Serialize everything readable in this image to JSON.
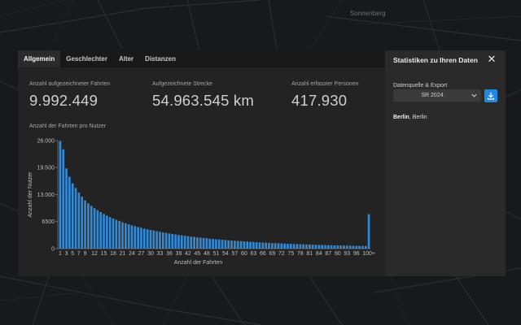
{
  "map": {
    "place_label": "Sonnenberg"
  },
  "tabs": [
    {
      "label": "Allgemein",
      "active": true
    },
    {
      "label": "Geschlechter",
      "active": false
    },
    {
      "label": "Alter",
      "active": false
    },
    {
      "label": "Distanzen",
      "active": false
    }
  ],
  "stats": [
    {
      "label": "Anzahl aufgezeichneter Fahrten",
      "value": "9.992.449"
    },
    {
      "label": "Aufgezeichnete Strecke",
      "value": "54.963.545 km"
    },
    {
      "label": "Anzahl erfasster Personen",
      "value": "417.930"
    }
  ],
  "chart_section_title": "Anzahl der Fahrten pro Nutzer",
  "panel": {
    "title": "Statistiken zu Ihren Daten",
    "section_label": "Datenquelle & Export",
    "select_value": "SR 2024",
    "location_bold": "Berlin",
    "location_rest": ", Berlin"
  },
  "colors": {
    "bar": "#2f8ad8",
    "download_button": "#1e88e5"
  },
  "icons": [
    "close-icon",
    "chevron-down-icon",
    "download-icon"
  ],
  "chart_data": {
    "type": "bar",
    "title": "Anzahl der Fahrten pro Nutzer",
    "xlabel": "Anzahl der Fahrten",
    "ylabel": "Anzahl der Nutzer",
    "ylim": [
      0,
      26000
    ],
    "yticks": [
      {
        "value": 0,
        "label": "0"
      },
      {
        "value": 6500,
        "label": "6500"
      },
      {
        "value": 13000,
        "label": "13.000"
      },
      {
        "value": 19500,
        "label": "19.500"
      },
      {
        "value": 26000,
        "label": "26.000"
      }
    ],
    "x_tick_labels": [
      "1",
      "3",
      "5",
      "7",
      "9",
      "12",
      "15",
      "18",
      "21",
      "24",
      "27",
      "30",
      "33",
      "36",
      "39",
      "42",
      "45",
      "48",
      "51",
      "54",
      "57",
      "60",
      "63",
      "66",
      "69",
      "72",
      "75",
      "78",
      "81",
      "84",
      "87",
      "90",
      "93",
      "96",
      "100+"
    ],
    "categories": [
      "1",
      "2",
      "3",
      "4",
      "5",
      "6",
      "7",
      "8",
      "9",
      "10",
      "11",
      "12",
      "13",
      "14",
      "15",
      "16",
      "17",
      "18",
      "19",
      "20",
      "21",
      "22",
      "23",
      "24",
      "25",
      "26",
      "27",
      "28",
      "29",
      "30",
      "31",
      "32",
      "33",
      "34",
      "35",
      "36",
      "37",
      "38",
      "39",
      "40",
      "41",
      "42",
      "43",
      "44",
      "45",
      "46",
      "47",
      "48",
      "49",
      "50",
      "51",
      "52",
      "53",
      "54",
      "55",
      "56",
      "57",
      "58",
      "59",
      "60",
      "61",
      "62",
      "63",
      "64",
      "65",
      "66",
      "67",
      "68",
      "69",
      "70",
      "71",
      "72",
      "73",
      "74",
      "75",
      "76",
      "77",
      "78",
      "79",
      "80",
      "81",
      "82",
      "83",
      "84",
      "85",
      "86",
      "87",
      "88",
      "89",
      "90",
      "91",
      "92",
      "93",
      "94",
      "95",
      "96",
      "97",
      "98",
      "99",
      "100+"
    ],
    "values": [
      25900,
      23900,
      19300,
      17300,
      15700,
      14600,
      13500,
      12500,
      11600,
      10900,
      10300,
      9750,
      9250,
      8800,
      8350,
      7950,
      7600,
      7250,
      6950,
      6650,
      6350,
      6100,
      5850,
      5600,
      5400,
      5200,
      5000,
      4800,
      4650,
      4500,
      4350,
      4200,
      4050,
      3900,
      3780,
      3650,
      3530,
      3420,
      3310,
      3200,
      3100,
      3000,
      2900,
      2810,
      2720,
      2640,
      2560,
      2480,
      2400,
      2330,
      2260,
      2190,
      2130,
      2070,
      2010,
      1950,
      1890,
      1840,
      1790,
      1740,
      1690,
      1640,
      1600,
      1550,
      1510,
      1470,
      1430,
      1390,
      1350,
      1320,
      1280,
      1250,
      1220,
      1180,
      1150,
      1120,
      1090,
      1060,
      1040,
      1010,
      980,
      960,
      930,
      910,
      890,
      860,
      840,
      820,
      800,
      780,
      760,
      740,
      720,
      700,
      685,
      670,
      655,
      640,
      625,
      8300
    ]
  }
}
